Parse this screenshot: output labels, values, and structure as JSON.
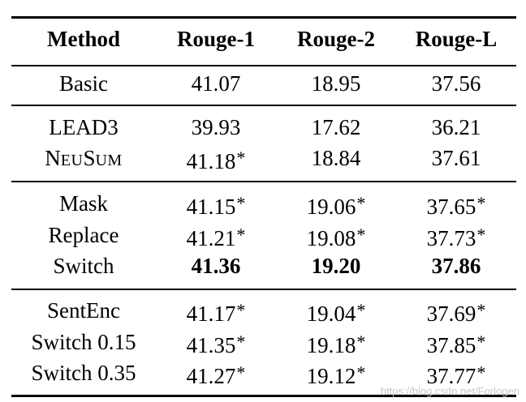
{
  "table": {
    "headers": [
      "Method",
      "Rouge-1",
      "Rouge-2",
      "Rouge-L"
    ],
    "groups": [
      [
        {
          "method": "Basic",
          "r1": "41.07",
          "r2": "18.95",
          "rl": "37.56"
        }
      ],
      [
        {
          "method": "LEAD3",
          "r1": "39.93",
          "r2": "17.62",
          "rl": "36.21"
        },
        {
          "method_smallcaps": [
            [
              "N",
              "EU"
            ],
            [
              "S",
              "UM"
            ]
          ],
          "r1": "41.18",
          "r1_star": "*",
          "r2": "18.84",
          "rl": "37.61"
        }
      ],
      [
        {
          "method": "Mask",
          "r1": "41.15",
          "r1_star": "*",
          "r2": "19.06",
          "r2_star": "*",
          "rl": "37.65",
          "rl_star": "*"
        },
        {
          "method": "Replace",
          "r1": "41.21",
          "r1_star": "*",
          "r2": "19.08",
          "r2_star": "*",
          "rl": "37.73",
          "rl_star": "*"
        },
        {
          "method": "Switch",
          "r1": "41.36",
          "r2": "19.20",
          "rl": "37.86",
          "bold": true
        }
      ],
      [
        {
          "method": "SentEnc",
          "r1": "41.17",
          "r1_star": "*",
          "r2": "19.04",
          "r2_star": "*",
          "rl": "37.69",
          "rl_star": "*"
        },
        {
          "method": "Switch 0.15",
          "r1": "41.35",
          "r1_star": "*",
          "r2": "19.18",
          "r2_star": "*",
          "rl": "37.85",
          "rl_star": "*"
        },
        {
          "method": "Switch 0.35",
          "r1": "41.27",
          "r1_star": "*",
          "r2": "19.12",
          "r2_star": "*",
          "rl": "37.77",
          "rl_star": "*"
        }
      ]
    ]
  },
  "watermark": "https://blog.csdn.net/Forlogen"
}
